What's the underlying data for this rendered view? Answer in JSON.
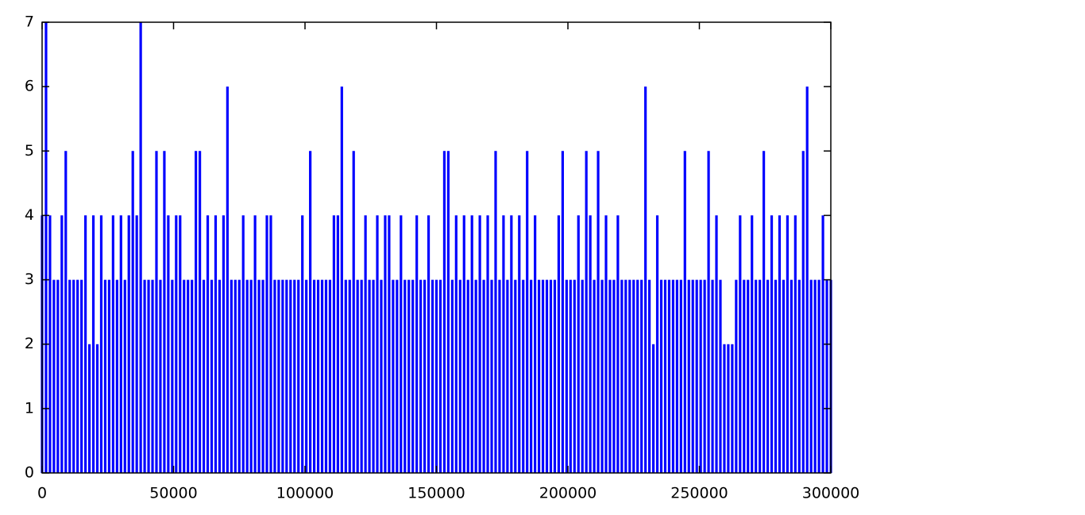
{
  "chart_data": {
    "type": "impulse",
    "color": "#0000ff",
    "x": [
      0,
      1500,
      3000,
      4500,
      6000,
      7500,
      9000,
      10500,
      12000,
      13500,
      15000,
      16500,
      18000,
      19500,
      21000,
      22500,
      24000,
      25500,
      27000,
      28500,
      30000,
      31500,
      33000,
      34500,
      36000,
      37500,
      39000,
      40500,
      42000,
      43500,
      45000,
      46500,
      48000,
      49500,
      51000,
      52500,
      54000,
      55500,
      57000,
      58500,
      60000,
      61500,
      63000,
      64500,
      66000,
      67500,
      69000,
      70500,
      72000,
      73500,
      75000,
      76500,
      78000,
      79500,
      81000,
      82500,
      84000,
      85500,
      87000,
      88500,
      90000,
      91500,
      93000,
      94500,
      96000,
      97500,
      99000,
      100500,
      102000,
      103500,
      105000,
      106500,
      108000,
      109500,
      111000,
      112500,
      114000,
      115500,
      117000,
      118500,
      120000,
      121500,
      123000,
      124500,
      126000,
      127500,
      129000,
      130500,
      132000,
      133500,
      135000,
      136500,
      138000,
      139500,
      141000,
      142500,
      144000,
      145500,
      147000,
      148500,
      150000,
      151500,
      153000,
      154500,
      156000,
      157500,
      159000,
      160500,
      162000,
      163500,
      165000,
      166500,
      168000,
      169500,
      171000,
      172500,
      174000,
      175500,
      177000,
      178500,
      180000,
      181500,
      183000,
      184500,
      186000,
      187500,
      189000,
      190500,
      192000,
      193500,
      195000,
      196500,
      198000,
      199500,
      201000,
      202500,
      204000,
      205500,
      207000,
      208500,
      210000,
      211500,
      213000,
      214500,
      216000,
      217500,
      219000,
      220500,
      222000,
      223500,
      225000,
      226500,
      228000,
      229500,
      231000,
      232500,
      234000,
      235500,
      237000,
      238500,
      240000,
      241500,
      243000,
      244500,
      246000,
      247500,
      249000,
      250500,
      252000,
      253500,
      255000,
      256500,
      258000,
      259500,
      261000,
      262500,
      264000,
      265500,
      267000,
      268500,
      270000,
      271500,
      273000,
      274500,
      276000,
      277500,
      279000,
      280500,
      282000,
      283500,
      285000,
      286500,
      288000,
      289500,
      291000,
      292500,
      294000,
      295500,
      297000,
      298500,
      300000
    ],
    "values": [
      4,
      7,
      4,
      3,
      3,
      4,
      5,
      3,
      3,
      3,
      3,
      4,
      2,
      4,
      2,
      4,
      3,
      3,
      4,
      3,
      4,
      3,
      4,
      5,
      4,
      7,
      3,
      3,
      3,
      5,
      3,
      5,
      4,
      3,
      4,
      4,
      3,
      3,
      3,
      5,
      5,
      3,
      4,
      3,
      4,
      3,
      4,
      6,
      3,
      3,
      3,
      4,
      3,
      3,
      4,
      3,
      3,
      4,
      4,
      3,
      3,
      3,
      3,
      3,
      3,
      3,
      4,
      3,
      5,
      3,
      3,
      3,
      3,
      3,
      4,
      4,
      6,
      3,
      3,
      5,
      3,
      3,
      4,
      3,
      3,
      4,
      3,
      4,
      4,
      3,
      3,
      4,
      3,
      3,
      3,
      4,
      3,
      3,
      4,
      3,
      3,
      3,
      5,
      5,
      3,
      4,
      3,
      4,
      3,
      4,
      3,
      4,
      3,
      4,
      3,
      5,
      3,
      4,
      3,
      4,
      3,
      4,
      3,
      5,
      3,
      4,
      3,
      3,
      3,
      3,
      3,
      4,
      5,
      3,
      3,
      3,
      4,
      3,
      5,
      4,
      3,
      5,
      3,
      4,
      3,
      3,
      4,
      3,
      3,
      3,
      3,
      3,
      3,
      6,
      3,
      2,
      4,
      3,
      3,
      3,
      3,
      3,
      3,
      5,
      3,
      3,
      3,
      3,
      3,
      5,
      3,
      4,
      3,
      2,
      2,
      2,
      3,
      4,
      3,
      3,
      4,
      3,
      3,
      5,
      3,
      4,
      3,
      4,
      3,
      4,
      3,
      4,
      3,
      5,
      6,
      3,
      3,
      3,
      4,
      3,
      3
    ],
    "xlim": [
      0,
      300000
    ],
    "ylim": [
      0,
      7
    ],
    "xticks": [
      0,
      50000,
      100000,
      150000,
      200000,
      250000,
      300000
    ],
    "yticks": [
      0,
      1,
      2,
      3,
      4,
      5,
      6,
      7
    ]
  }
}
